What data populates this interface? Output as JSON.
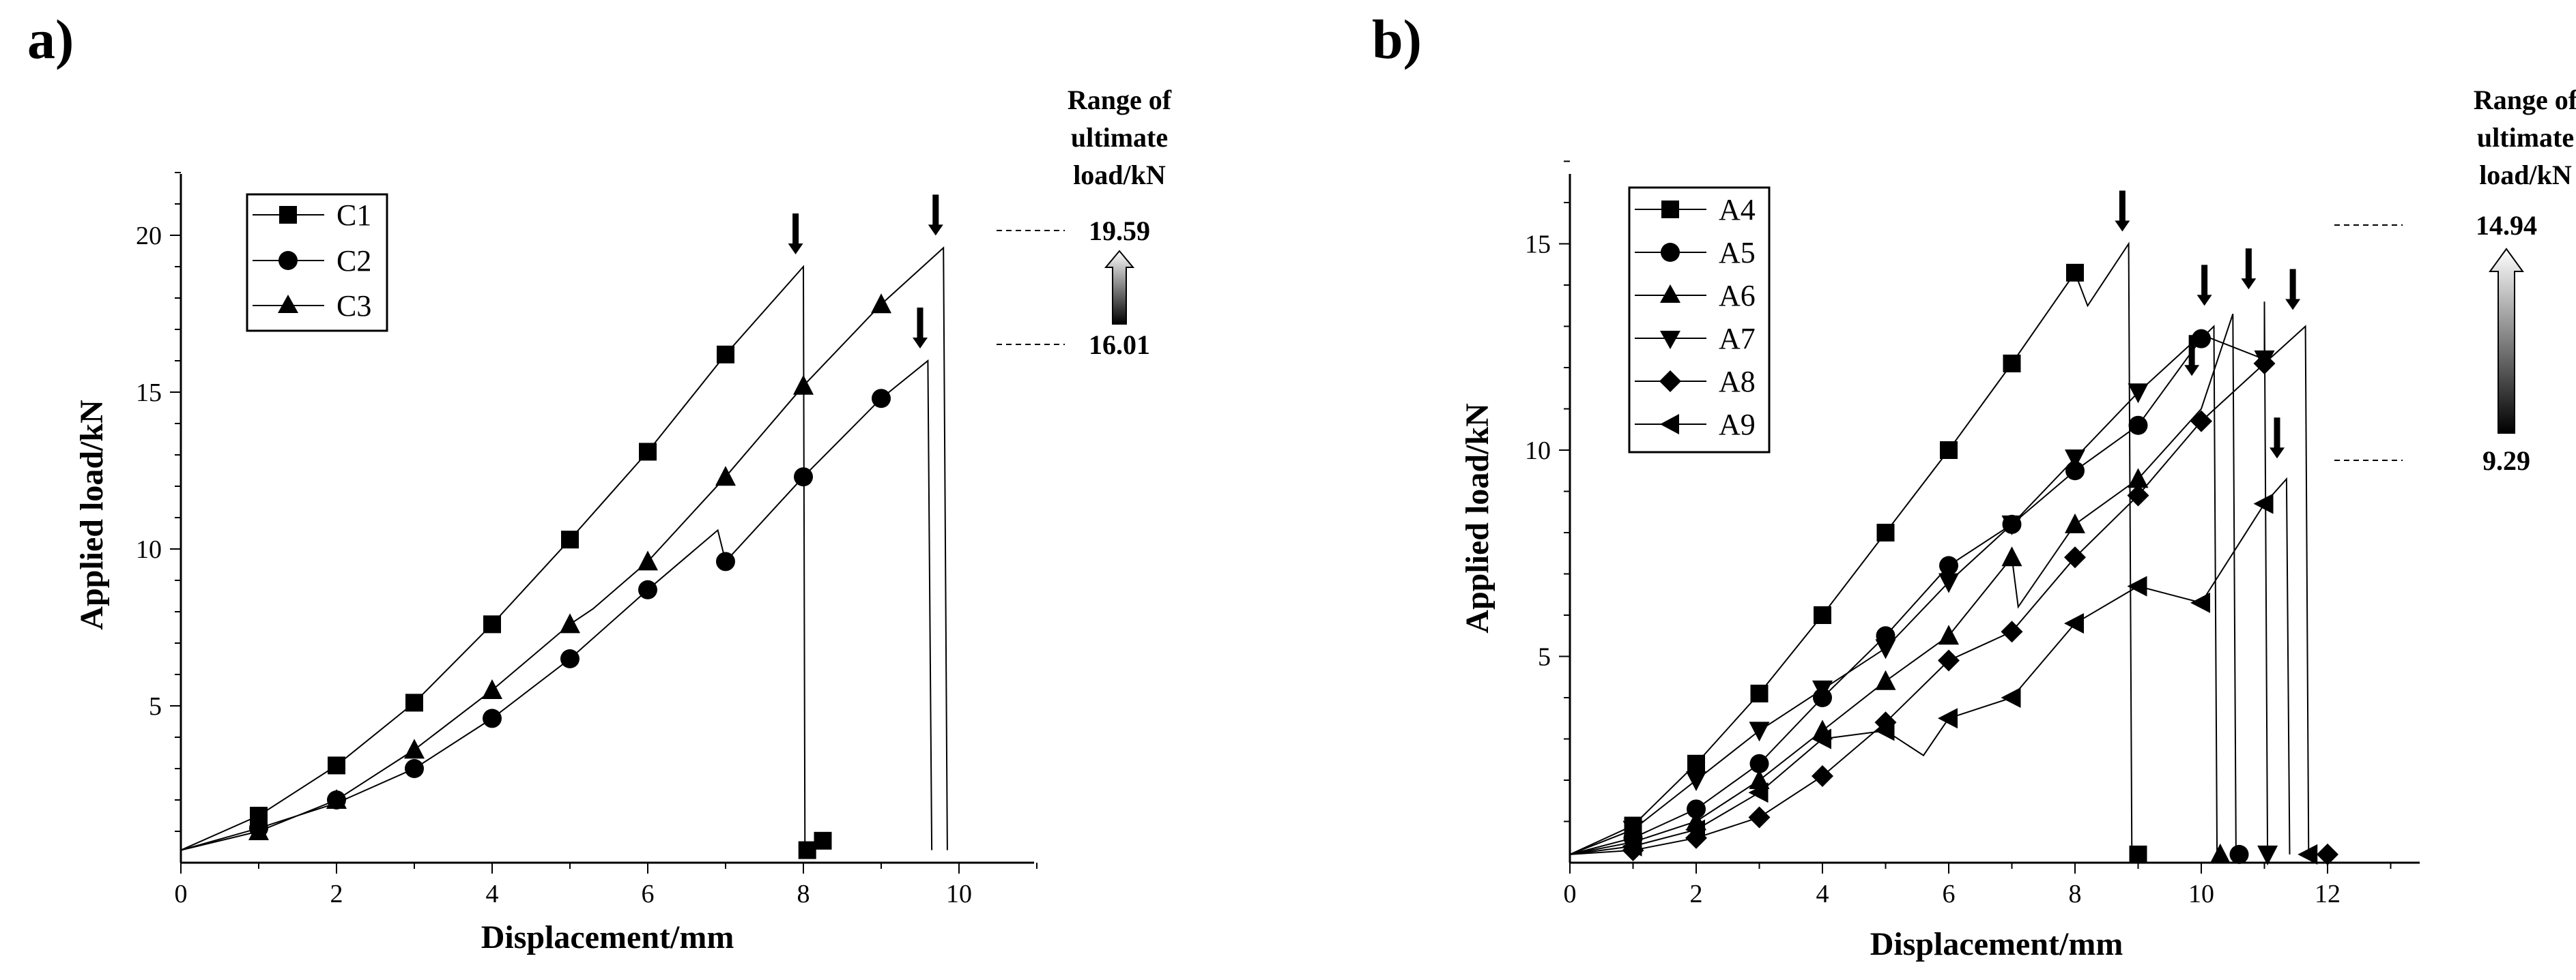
{
  "chart_data": [
    {
      "panel": "a)",
      "type": "line",
      "xlabel": "Displacement/mm",
      "ylabel": "Applied load/kN",
      "xlim": [
        0,
        11
      ],
      "ylim": [
        0,
        22
      ],
      "xticks": [
        0,
        2,
        4,
        6,
        8,
        10
      ],
      "yticks": [
        5,
        10,
        15,
        20
      ],
      "legend": "top-left",
      "legend_entries": [
        "C1",
        "C2",
        "C3"
      ],
      "series": [
        {
          "name": "C1",
          "marker": "square",
          "x": [
            0,
            1,
            2,
            3,
            4,
            5,
            6,
            7,
            8,
            8.02
          ],
          "y": [
            0.4,
            1.5,
            3.1,
            5.1,
            7.6,
            10.3,
            13.1,
            16.2,
            19.0,
            0.4
          ],
          "markers": [
            [
              1,
              1.5
            ],
            [
              2,
              3.1
            ],
            [
              3,
              5.1
            ],
            [
              4,
              7.6
            ],
            [
              5,
              10.3
            ],
            [
              6,
              13.1
            ],
            [
              7,
              16.2
            ],
            [
              8.05,
              0.4
            ],
            [
              8.25,
              0.7
            ]
          ]
        },
        {
          "name": "C2",
          "marker": "circle",
          "x": [
            0,
            1,
            2,
            3,
            4,
            5,
            6,
            6.9,
            7,
            8,
            9,
            9.6,
            9.65
          ],
          "y": [
            0.4,
            1.1,
            1.9,
            3.0,
            4.6,
            6.5,
            8.7,
            10.6,
            9.6,
            12.3,
            14.8,
            16.0,
            0.4
          ],
          "markers": [
            [
              1,
              1.1
            ],
            [
              2,
              2.0
            ],
            [
              3,
              3.0
            ],
            [
              4,
              4.6
            ],
            [
              5,
              6.5
            ],
            [
              6,
              8.7
            ],
            [
              7,
              9.6
            ],
            [
              8,
              12.3
            ],
            [
              9,
              14.8
            ]
          ]
        },
        {
          "name": "C3",
          "marker": "triangle",
          "x": [
            0,
            1,
            2,
            3,
            4,
            5,
            5.3,
            6,
            7,
            8,
            9,
            9.8,
            9.85
          ],
          "y": [
            0.4,
            1.0,
            2.0,
            3.6,
            5.5,
            7.6,
            8.1,
            9.6,
            12.3,
            15.2,
            17.8,
            19.6,
            0.4
          ],
          "markers": [
            [
              1,
              1.0
            ],
            [
              2,
              2.0
            ],
            [
              3,
              3.6
            ],
            [
              4,
              5.5
            ],
            [
              5,
              7.6
            ],
            [
              6,
              9.6
            ],
            [
              7,
              12.3
            ],
            [
              8,
              15.2
            ],
            [
              9,
              17.8
            ]
          ]
        }
      ],
      "ultimate_arrows": [
        [
          7.9,
          19.0
        ],
        [
          9.7,
          19.6
        ],
        [
          9.5,
          16.0
        ]
      ],
      "range_title": [
        "Range of",
        "ultimate",
        "load/kN"
      ],
      "range_max": "19.59",
      "range_min": "16.01",
      "range_max_value": 19.59,
      "range_min_value": 16.01
    },
    {
      "panel": "b)",
      "type": "line",
      "xlabel": "Displacement/mm",
      "ylabel": "Applied load/kN",
      "xlim": [
        0,
        13
      ],
      "ylim": [
        0,
        17
      ],
      "xticks": [
        0,
        2,
        4,
        6,
        8,
        10,
        12
      ],
      "yticks": [
        5,
        10,
        15
      ],
      "legend": "top-left",
      "legend_entries": [
        "A4",
        "A5",
        "A6",
        "A7",
        "A8",
        "A9"
      ],
      "series": [
        {
          "name": "A4",
          "marker": "square",
          "x": [
            0,
            1,
            2,
            3,
            4,
            5,
            6,
            7,
            8,
            8.2,
            8.85,
            8.9
          ],
          "y": [
            0.2,
            0.9,
            2.4,
            4.1,
            6.0,
            8.0,
            10.0,
            12.1,
            14.3,
            13.5,
            15.0,
            0.2
          ],
          "markers": [
            [
              1,
              0.9
            ],
            [
              2,
              2.4
            ],
            [
              3,
              4.1
            ],
            [
              4,
              6.0
            ],
            [
              5,
              8.0
            ],
            [
              6,
              10.0
            ],
            [
              7,
              12.1
            ],
            [
              8,
              14.3
            ],
            [
              9.0,
              0.2
            ]
          ]
        },
        {
          "name": "A5",
          "marker": "circle",
          "x": [
            0,
            1,
            2,
            3,
            4,
            5,
            6,
            7,
            8,
            9,
            10,
            10.2,
            10.25
          ],
          "y": [
            0.2,
            0.6,
            1.3,
            2.4,
            4.0,
            5.5,
            7.2,
            8.2,
            9.5,
            10.6,
            12.7,
            13.0,
            0.2
          ],
          "markers": [
            [
              1,
              0.6
            ],
            [
              2,
              1.3
            ],
            [
              3,
              2.4
            ],
            [
              4,
              4.0
            ],
            [
              5,
              5.5
            ],
            [
              6,
              7.2
            ],
            [
              7,
              8.2
            ],
            [
              8,
              9.5
            ],
            [
              9,
              10.6
            ],
            [
              10,
              12.7
            ],
            [
              10.6,
              0.2
            ]
          ]
        },
        {
          "name": "A6",
          "marker": "triangle",
          "x": [
            0,
            1,
            2,
            3,
            4,
            5,
            6,
            7,
            7.1,
            8,
            9,
            10,
            10.5,
            10.55
          ],
          "y": [
            0.2,
            0.5,
            1.0,
            2.0,
            3.2,
            4.4,
            5.5,
            7.4,
            6.2,
            8.2,
            9.3,
            11.0,
            13.3,
            0.2
          ],
          "markers": [
            [
              1,
              0.5
            ],
            [
              2,
              1.0
            ],
            [
              3,
              2.0
            ],
            [
              4,
              3.2
            ],
            [
              5,
              4.4
            ],
            [
              6,
              5.5
            ],
            [
              7,
              7.4
            ],
            [
              8,
              8.2
            ],
            [
              9,
              9.3
            ],
            [
              10.3,
              0.2
            ]
          ]
        },
        {
          "name": "A7",
          "marker": "triangle-down",
          "x": [
            0,
            1,
            2,
            3,
            4,
            5,
            6,
            7,
            8,
            9,
            10,
            11,
            11.0,
            11.05
          ],
          "y": [
            0.2,
            0.8,
            2.0,
            3.2,
            4.2,
            5.2,
            6.8,
            8.2,
            9.8,
            11.4,
            12.8,
            12.2,
            13.6,
            0.2
          ],
          "markers": [
            [
              1,
              0.8
            ],
            [
              2,
              2.0
            ],
            [
              3,
              3.2
            ],
            [
              4,
              4.2
            ],
            [
              5,
              5.2
            ],
            [
              6,
              6.8
            ],
            [
              7,
              8.2
            ],
            [
              8,
              9.8
            ],
            [
              9,
              11.4
            ],
            [
              11,
              12.2
            ],
            [
              11.05,
              0.2
            ]
          ]
        },
        {
          "name": "A8",
          "marker": "diamond",
          "x": [
            0,
            1,
            2,
            3,
            4,
            5,
            6,
            7,
            8,
            9,
            10,
            11,
            11.65,
            11.7
          ],
          "y": [
            0.2,
            0.3,
            0.6,
            1.1,
            2.1,
            3.4,
            4.9,
            5.6,
            7.4,
            8.9,
            10.7,
            12.1,
            13.0,
            0.2
          ],
          "markers": [
            [
              1,
              0.3
            ],
            [
              2,
              0.6
            ],
            [
              3,
              1.1
            ],
            [
              4,
              2.1
            ],
            [
              5,
              3.4
            ],
            [
              6,
              4.9
            ],
            [
              7,
              5.6
            ],
            [
              8,
              7.4
            ],
            [
              9,
              8.9
            ],
            [
              10,
              10.7
            ],
            [
              11,
              12.1
            ],
            [
              12.0,
              0.2
            ]
          ]
        },
        {
          "name": "A9",
          "marker": "triangle-left",
          "x": [
            0,
            1,
            2,
            3,
            4,
            5,
            5.6,
            6,
            7,
            8,
            9,
            10,
            11,
            11.35,
            11.4
          ],
          "y": [
            0.2,
            0.4,
            0.8,
            1.7,
            3.0,
            3.2,
            2.6,
            3.5,
            4.0,
            5.8,
            6.7,
            6.3,
            8.7,
            9.3,
            0.2
          ],
          "markers": [
            [
              1,
              0.4
            ],
            [
              2,
              0.8
            ],
            [
              3,
              1.7
            ],
            [
              4,
              3.0
            ],
            [
              5,
              3.2
            ],
            [
              6,
              3.5
            ],
            [
              7,
              4.0
            ],
            [
              8,
              5.8
            ],
            [
              9,
              6.7
            ],
            [
              10,
              6.3
            ],
            [
              11,
              8.7
            ],
            [
              11.7,
              0.2
            ]
          ]
        }
      ],
      "ultimate_arrows": [
        [
          8.75,
          15.0
        ],
        [
          9.85,
          11.5
        ],
        [
          10.05,
          13.2
        ],
        [
          10.75,
          13.6
        ],
        [
          11.45,
          13.1
        ],
        [
          11.2,
          9.5
        ]
      ],
      "range_title": [
        "Range of",
        "ultimate",
        "load/kN"
      ],
      "range_max": "14.94",
      "range_min": "9.29",
      "range_max_value": 14.94,
      "range_min_value": 9.29
    }
  ]
}
